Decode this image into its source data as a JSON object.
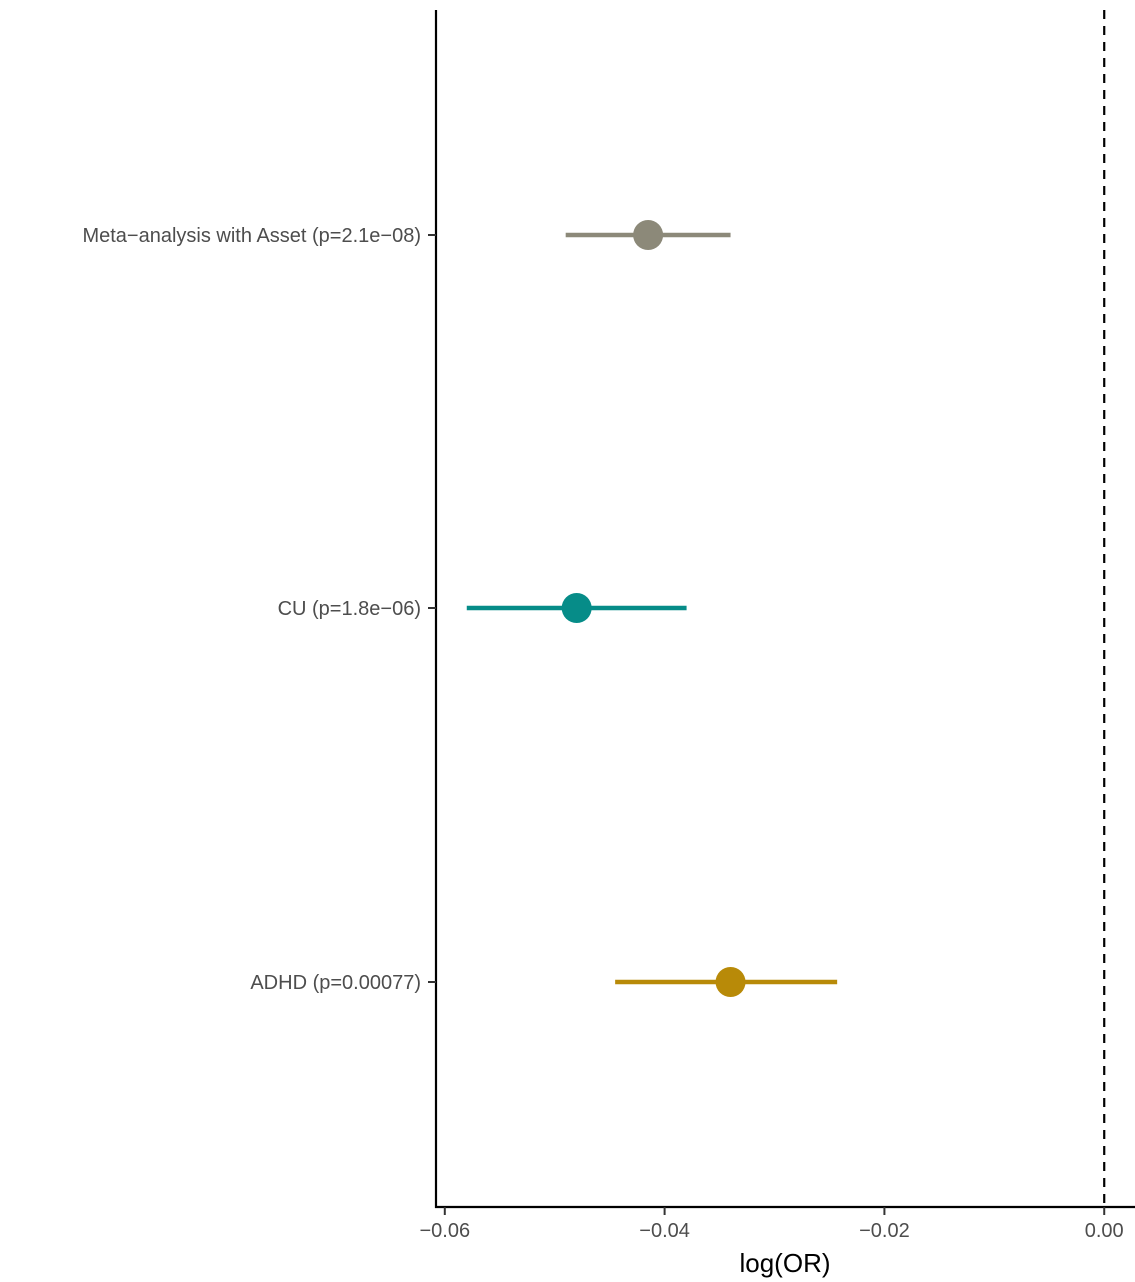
{
  "chart_data": {
    "type": "forest",
    "title": "",
    "xlabel": "log(OR)",
    "ylabel": "",
    "xlim": [
      -0.0608,
      0.0028
    ],
    "x_ticks": [
      -0.06,
      -0.04,
      -0.02,
      0.0
    ],
    "x_tick_labels": [
      "−0.06",
      "−0.04",
      "−0.02",
      "0.00"
    ],
    "reference_line": 0.0,
    "grid": false,
    "legend": "none",
    "rows": [
      {
        "label": "Meta−analysis with Asset (p=2.1e−08)",
        "estimate": -0.0415,
        "lower": -0.049,
        "upper": -0.034,
        "color": "#8C8979"
      },
      {
        "label": "CU (p=1.8e−06)",
        "estimate": -0.048,
        "lower": -0.058,
        "upper": -0.038,
        "color": "#068C88"
      },
      {
        "label": "ADHD (p=0.00077)",
        "estimate": -0.034,
        "lower": -0.0445,
        "upper": -0.0243,
        "color": "#B88A08"
      }
    ]
  }
}
